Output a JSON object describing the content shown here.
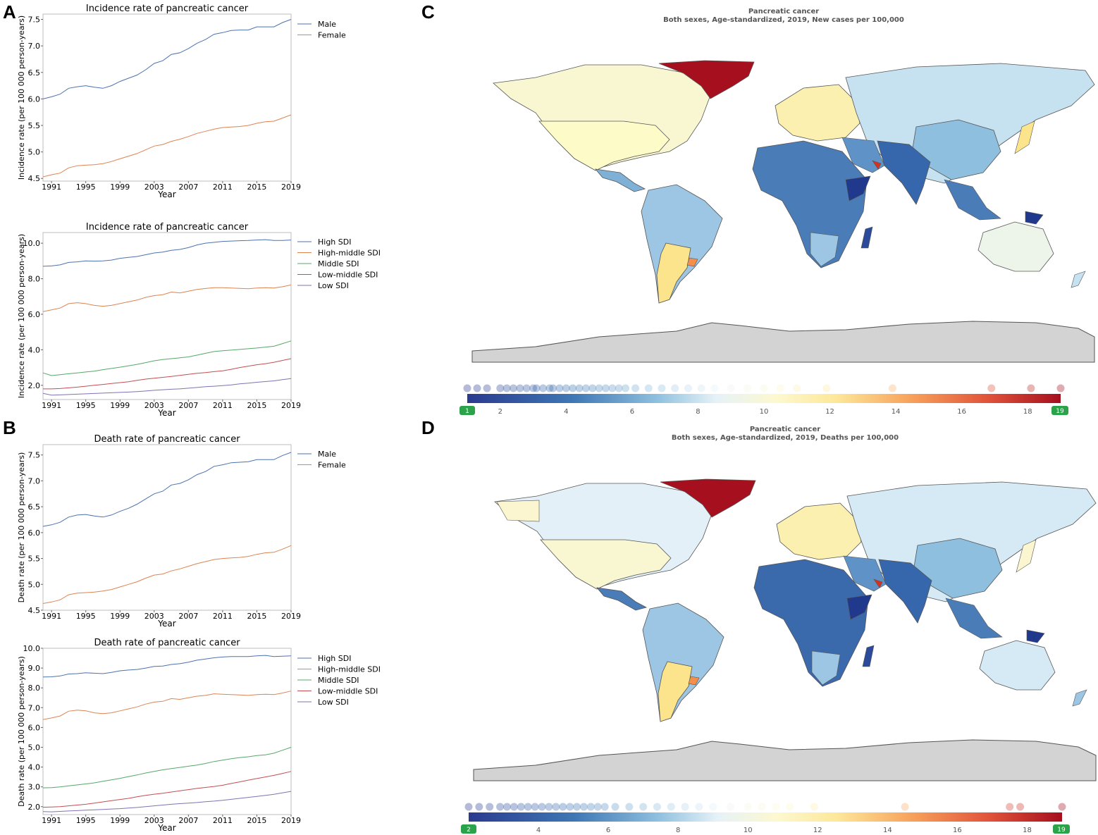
{
  "panels": {
    "a": "A",
    "b": "B",
    "c": "C",
    "d": "D"
  },
  "chart_data": [
    {
      "id": "incidence-sex",
      "type": "line",
      "title": "Incidence rate of pancreatic cancer",
      "xlabel": "Year",
      "ylabel": "Incidence rate (per 100 000 person-years)",
      "xlim": [
        1990,
        2019
      ],
      "ylim": [
        4.45,
        7.6
      ],
      "x_ticks": [
        "1991",
        "1995",
        "1999",
        "2003",
        "2007",
        "2011",
        "2015",
        "2019"
      ],
      "y_ticks": [
        "4.5",
        "5.0",
        "5.5",
        "6.0",
        "6.5",
        "7.0",
        "7.5"
      ],
      "x": [
        1990,
        1991,
        1992,
        1993,
        1994,
        1995,
        1996,
        1997,
        1998,
        1999,
        2000,
        2001,
        2002,
        2003,
        2004,
        2005,
        2006,
        2007,
        2008,
        2009,
        2010,
        2011,
        2012,
        2013,
        2014,
        2015,
        2016,
        2017,
        2018,
        2019
      ],
      "series": [
        {
          "name": "Male",
          "color": "#4c72b0",
          "values": [
            6.0,
            6.04,
            6.09,
            6.2,
            6.23,
            6.25,
            6.22,
            6.2,
            6.25,
            6.33,
            6.39,
            6.45,
            6.55,
            6.67,
            6.72,
            6.84,
            6.87,
            6.95,
            7.05,
            7.12,
            7.22,
            7.25,
            7.29,
            7.3,
            7.3,
            7.36,
            7.36,
            7.36,
            7.44,
            7.5
          ]
        },
        {
          "name": "Female",
          "color": "#dd8452",
          "values": [
            4.53,
            4.57,
            4.6,
            4.7,
            4.74,
            4.75,
            4.76,
            4.78,
            4.82,
            4.87,
            4.92,
            4.97,
            5.04,
            5.11,
            5.14,
            5.2,
            5.24,
            5.29,
            5.35,
            5.39,
            5.43,
            5.46,
            5.47,
            5.48,
            5.5,
            5.54,
            5.57,
            5.58,
            5.64,
            5.7
          ]
        }
      ]
    },
    {
      "id": "incidence-sdi",
      "type": "line",
      "title": "Incidence rate of pancreatic cancer",
      "xlabel": "Year",
      "ylabel": "Incidence rate (per 100 000 person-years)",
      "xlim": [
        1990,
        2019
      ],
      "ylim": [
        1.2,
        10.6
      ],
      "x_ticks": [
        "1991",
        "1995",
        "1999",
        "2003",
        "2007",
        "2011",
        "2015",
        "2019"
      ],
      "y_ticks": [
        "2.0",
        "4.0",
        "6.0",
        "8.0",
        "10.0"
      ],
      "x": [
        1990,
        1991,
        1992,
        1993,
        1994,
        1995,
        1996,
        1997,
        1998,
        1999,
        2000,
        2001,
        2002,
        2003,
        2004,
        2005,
        2006,
        2007,
        2008,
        2009,
        2010,
        2011,
        2012,
        2013,
        2014,
        2015,
        2016,
        2017,
        2018,
        2019
      ],
      "series": [
        {
          "name": "High SDI",
          "color": "#4c72b0",
          "values": [
            8.7,
            8.72,
            8.78,
            8.92,
            8.95,
            9.0,
            8.99,
            9.0,
            9.05,
            9.15,
            9.2,
            9.25,
            9.35,
            9.45,
            9.5,
            9.6,
            9.65,
            9.75,
            9.9,
            10.0,
            10.05,
            10.1,
            10.12,
            10.14,
            10.15,
            10.18,
            10.2,
            10.15,
            10.15,
            10.18
          ]
        },
        {
          "name": "High-middle SDI",
          "color": "#dd8452",
          "values": [
            6.15,
            6.25,
            6.35,
            6.6,
            6.65,
            6.6,
            6.5,
            6.45,
            6.5,
            6.6,
            6.7,
            6.8,
            6.95,
            7.05,
            7.1,
            7.25,
            7.2,
            7.3,
            7.4,
            7.45,
            7.5,
            7.5,
            7.48,
            7.46,
            7.44,
            7.48,
            7.5,
            7.48,
            7.55,
            7.65
          ]
        },
        {
          "name": "Middle SDI",
          "color": "#55a868",
          "values": [
            2.7,
            2.55,
            2.6,
            2.65,
            2.7,
            2.75,
            2.8,
            2.88,
            2.95,
            3.02,
            3.1,
            3.18,
            3.28,
            3.38,
            3.45,
            3.5,
            3.55,
            3.6,
            3.7,
            3.8,
            3.9,
            3.95,
            3.98,
            4.02,
            4.06,
            4.1,
            4.15,
            4.2,
            4.35,
            4.5
          ]
        },
        {
          "name": "Low-middle SDI",
          "color": "#c44e52",
          "values": [
            1.8,
            1.8,
            1.82,
            1.86,
            1.9,
            1.95,
            2.0,
            2.05,
            2.1,
            2.15,
            2.2,
            2.28,
            2.35,
            2.4,
            2.45,
            2.5,
            2.56,
            2.62,
            2.68,
            2.72,
            2.77,
            2.82,
            2.9,
            3.0,
            3.08,
            3.16,
            3.22,
            3.3,
            3.4,
            3.5
          ]
        },
        {
          "name": "Low SDI",
          "color": "#8172b3",
          "values": [
            1.55,
            1.45,
            1.46,
            1.48,
            1.5,
            1.52,
            1.54,
            1.56,
            1.58,
            1.6,
            1.62,
            1.65,
            1.68,
            1.72,
            1.75,
            1.78,
            1.8,
            1.84,
            1.88,
            1.92,
            1.95,
            1.98,
            2.02,
            2.08,
            2.12,
            2.17,
            2.21,
            2.25,
            2.32,
            2.38
          ]
        }
      ]
    },
    {
      "id": "death-sex",
      "type": "line",
      "title": "Death rate of pancreatic cancer",
      "xlabel": "Year",
      "ylabel": "Death rate (per 100 000 person-years)",
      "xlim": [
        1990,
        2019
      ],
      "ylim": [
        4.5,
        7.7
      ],
      "x_ticks": [
        "1991",
        "1995",
        "1999",
        "2003",
        "2007",
        "2011",
        "2015",
        "2019"
      ],
      "y_ticks": [
        "4.5",
        "5.0",
        "5.5",
        "6.0",
        "6.5",
        "7.0",
        "7.5"
      ],
      "x": [
        1990,
        1991,
        1992,
        1993,
        1994,
        1995,
        1996,
        1997,
        1998,
        1999,
        2000,
        2001,
        2002,
        2003,
        2004,
        2005,
        2006,
        2007,
        2008,
        2009,
        2010,
        2011,
        2012,
        2013,
        2014,
        2015,
        2016,
        2017,
        2018,
        2019
      ],
      "series": [
        {
          "name": "Male",
          "color": "#4c72b0",
          "values": [
            6.12,
            6.15,
            6.2,
            6.3,
            6.34,
            6.35,
            6.32,
            6.3,
            6.34,
            6.41,
            6.47,
            6.55,
            6.65,
            6.75,
            6.8,
            6.92,
            6.95,
            7.02,
            7.12,
            7.18,
            7.28,
            7.31,
            7.35,
            7.36,
            7.37,
            7.41,
            7.41,
            7.41,
            7.49,
            7.55
          ]
        },
        {
          "name": "Female",
          "color": "#dd8452",
          "values": [
            4.63,
            4.66,
            4.7,
            4.8,
            4.83,
            4.84,
            4.85,
            4.87,
            4.9,
            4.95,
            5.0,
            5.05,
            5.12,
            5.18,
            5.2,
            5.26,
            5.3,
            5.35,
            5.4,
            5.44,
            5.48,
            5.5,
            5.51,
            5.52,
            5.54,
            5.58,
            5.61,
            5.62,
            5.68,
            5.75
          ]
        }
      ]
    },
    {
      "id": "death-sdi",
      "type": "line",
      "title": "Death rate of pancreatic cancer",
      "xlabel": "Year",
      "ylabel": "Death rate (per 100 000 person-years)",
      "xlim": [
        1990,
        2019
      ],
      "ylim": [
        1.6,
        10.0
      ],
      "x_ticks": [
        "1991",
        "1995",
        "1999",
        "2003",
        "2007",
        "2011",
        "2015",
        "2019"
      ],
      "y_ticks": [
        "2.0",
        "3.0",
        "4.0",
        "5.0",
        "6.0",
        "7.0",
        "8.0",
        "9.0",
        "10.0"
      ],
      "x": [
        1990,
        1991,
        1992,
        1993,
        1994,
        1995,
        1996,
        1997,
        1998,
        1999,
        2000,
        2001,
        2002,
        2003,
        2004,
        2005,
        2006,
        2007,
        2008,
        2009,
        2010,
        2011,
        2012,
        2013,
        2014,
        2015,
        2016,
        2017,
        2018,
        2019
      ],
      "series": [
        {
          "name": "High SDI",
          "color": "#4c72b0",
          "values": [
            8.55,
            8.56,
            8.6,
            8.7,
            8.72,
            8.76,
            8.74,
            8.72,
            8.78,
            8.86,
            8.9,
            8.93,
            9.0,
            9.08,
            9.1,
            9.18,
            9.22,
            9.3,
            9.4,
            9.46,
            9.52,
            9.56,
            9.58,
            9.58,
            9.58,
            9.62,
            9.64,
            9.58,
            9.6,
            9.62
          ]
        },
        {
          "name": "High-middle SDI",
          "color": "#dd8452",
          "values": [
            6.4,
            6.48,
            6.58,
            6.82,
            6.88,
            6.84,
            6.74,
            6.7,
            6.74,
            6.84,
            6.94,
            7.04,
            7.18,
            7.28,
            7.32,
            7.46,
            7.42,
            7.5,
            7.58,
            7.62,
            7.7,
            7.68,
            7.66,
            7.64,
            7.62,
            7.66,
            7.68,
            7.66,
            7.74,
            7.84
          ]
        },
        {
          "name": "Middle SDI",
          "color": "#55a868",
          "values": [
            2.95,
            2.96,
            3.0,
            3.05,
            3.1,
            3.15,
            3.2,
            3.28,
            3.35,
            3.43,
            3.52,
            3.6,
            3.7,
            3.78,
            3.86,
            3.92,
            3.98,
            4.04,
            4.1,
            4.18,
            4.28,
            4.35,
            4.42,
            4.48,
            4.52,
            4.58,
            4.62,
            4.7,
            4.85,
            5.0
          ]
        },
        {
          "name": "Low-middle SDI",
          "color": "#c44e52",
          "values": [
            1.97,
            1.98,
            2.0,
            2.04,
            2.08,
            2.12,
            2.18,
            2.24,
            2.3,
            2.36,
            2.42,
            2.5,
            2.57,
            2.63,
            2.68,
            2.74,
            2.8,
            2.86,
            2.92,
            2.97,
            3.02,
            3.08,
            3.17,
            3.25,
            3.34,
            3.42,
            3.5,
            3.58,
            3.68,
            3.78
          ]
        },
        {
          "name": "Low SDI",
          "color": "#8172b3",
          "values": [
            1.75,
            1.74,
            1.76,
            1.78,
            1.8,
            1.82,
            1.84,
            1.86,
            1.88,
            1.9,
            1.93,
            1.96,
            2.0,
            2.04,
            2.08,
            2.12,
            2.15,
            2.18,
            2.21,
            2.25,
            2.28,
            2.32,
            2.37,
            2.42,
            2.47,
            2.52,
            2.57,
            2.62,
            2.7,
            2.77
          ]
        }
      ]
    },
    {
      "id": "map-incidence",
      "type": "choropleth",
      "title": "Pancreatic cancer",
      "subtitle": "Both sexes, Age-standardized, 2019, New cases per 100,000",
      "scale_min": 1,
      "scale_max": 19,
      "scale_ticks": [
        "2",
        "4",
        "6",
        "8",
        "10",
        "12",
        "14",
        "16",
        "18"
      ],
      "handle_low": "1",
      "handle_high": "19"
    },
    {
      "id": "map-death",
      "type": "choropleth",
      "title": "Pancreatic cancer",
      "subtitle": "Both sexes, Age-standardized, 2019, Deaths per 100,000",
      "scale_min": 2,
      "scale_max": 19,
      "scale_ticks": [
        "2",
        "4",
        "6",
        "8",
        "10",
        "12",
        "14",
        "16",
        "18"
      ],
      "handle_low": "2",
      "handle_high": "19"
    }
  ]
}
